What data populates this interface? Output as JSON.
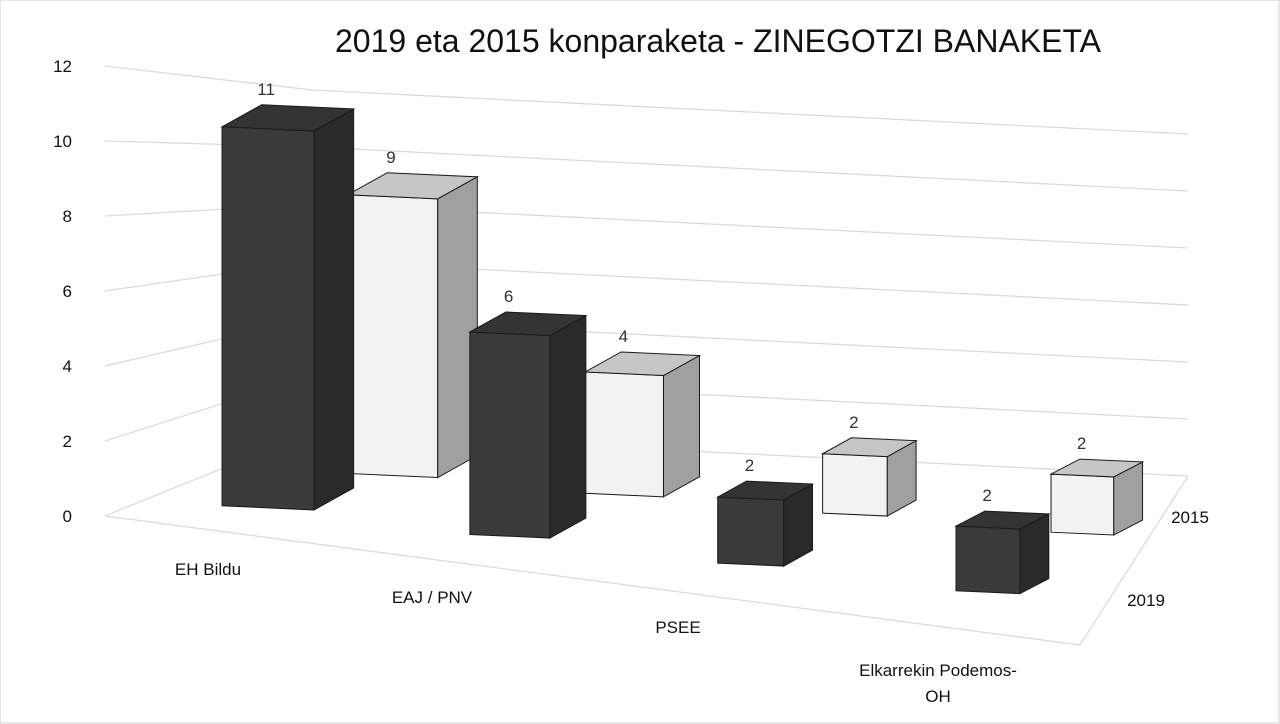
{
  "chart_data": {
    "type": "bar",
    "title": "2019 eta 2015 konparaketa - ZINEGOTZI BANAKETA",
    "xlabel": "",
    "ylabel": "",
    "ylim": [
      0,
      12
    ],
    "yticks": [
      "0",
      "2",
      "4",
      "6",
      "8",
      "10",
      "12"
    ],
    "categories": [
      "EH Bildu",
      "EAJ / PNV",
      "PSEE",
      "Elkarrekin Podemos-OH"
    ],
    "series": [
      {
        "name": "2019",
        "values": [
          11,
          6,
          2,
          2
        ],
        "color": "#3a3a3a"
      },
      {
        "name": "2015",
        "values": [
          9,
          4,
          2,
          2
        ],
        "color": "#f2f2f2"
      }
    ],
    "grid": true,
    "legend": "right"
  }
}
